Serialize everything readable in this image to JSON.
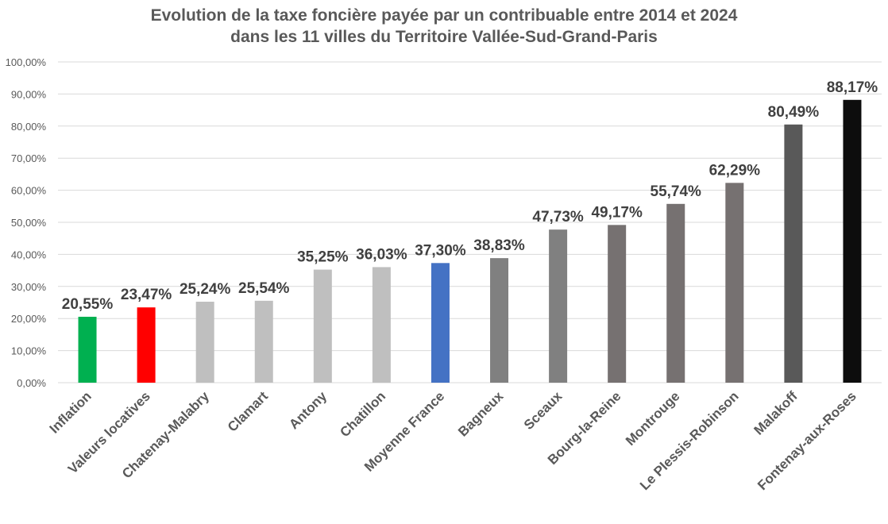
{
  "chart_data": {
    "type": "bar",
    "title_line1": "Evolution de la taxe foncière payée par un contribuable entre 2014 et 2024",
    "title_line2": "dans les 11 villes du Territoire Vallée-Sud-Grand-Paris",
    "xlabel": "",
    "ylabel": "",
    "ylim": [
      0,
      100
    ],
    "ytick_step": 10,
    "ytick_labels": [
      "0,00%",
      "10,00%",
      "20,00%",
      "30,00%",
      "40,00%",
      "50,00%",
      "60,00%",
      "70,00%",
      "80,00%",
      "90,00%",
      "100,00%"
    ],
    "grid": true,
    "legend": "none",
    "categories": [
      "Inflation",
      "Valeurs locatives",
      "Chatenay-Malabry",
      "Clamart",
      "Antony",
      "Chatillon",
      "Moyenne France",
      "Bagneux",
      "Sceaux",
      "Bourg-la-Reine",
      "Montrouge",
      "Le Plessis-Robinson",
      "Malakoff",
      "Fontenay-aux-Roses"
    ],
    "values": [
      20.55,
      23.47,
      25.24,
      25.54,
      35.25,
      36.03,
      37.3,
      38.83,
      47.73,
      49.17,
      55.74,
      62.29,
      80.49,
      88.17
    ],
    "data_labels": [
      "20,55%",
      "23,47%",
      "25,24%",
      "25,54%",
      "35,25%",
      "36,03%",
      "37,30%",
      "38,83%",
      "47,73%",
      "49,17%",
      "55,74%",
      "62,29%",
      "80,49%",
      "88,17%"
    ],
    "colors": [
      "#00b050",
      "#ff0000",
      "#bfbfbf",
      "#bfbfbf",
      "#bfbfbf",
      "#bfbfbf",
      "#4472c4",
      "#808080",
      "#808080",
      "#767171",
      "#767171",
      "#767171",
      "#595959",
      "#0d0d0d"
    ]
  }
}
